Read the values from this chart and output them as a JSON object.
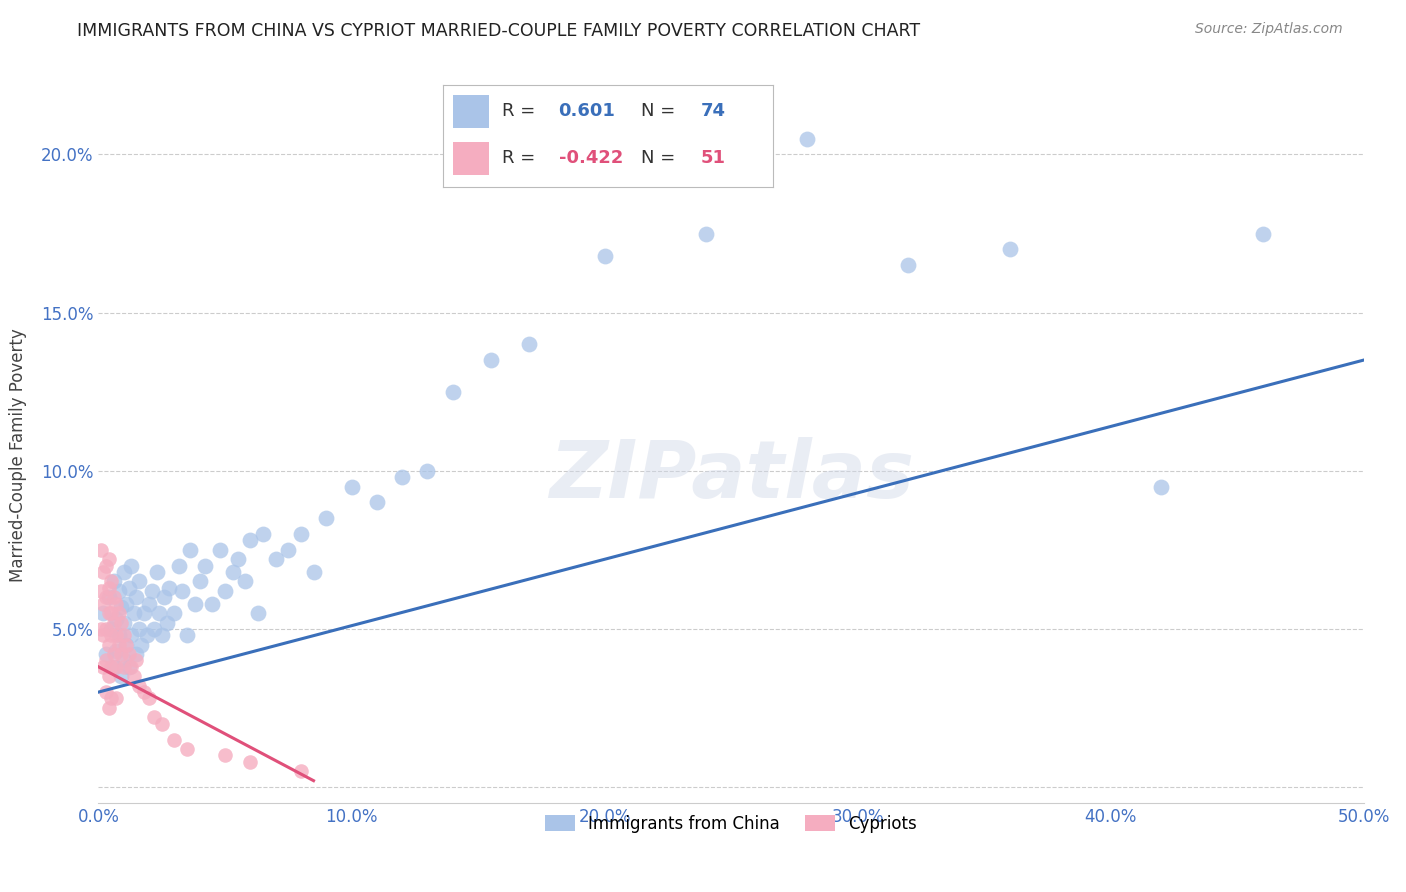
{
  "title": "IMMIGRANTS FROM CHINA VS CYPRIOT MARRIED-COUPLE FAMILY POVERTY CORRELATION CHART",
  "source": "Source: ZipAtlas.com",
  "ylabel": "Married-Couple Family Poverty",
  "xlim": [
    0.0,
    0.5
  ],
  "ylim": [
    -0.005,
    0.215
  ],
  "xticks": [
    0.0,
    0.1,
    0.2,
    0.3,
    0.4,
    0.5
  ],
  "yticks": [
    0.0,
    0.05,
    0.1,
    0.15,
    0.2
  ],
  "xticklabels": [
    "0.0%",
    "10.0%",
    "20.0%",
    "30.0%",
    "40.0%",
    "50.0%"
  ],
  "yticklabels": [
    "",
    "5.0%",
    "10.0%",
    "15.0%",
    "20.0%"
  ],
  "china_R": 0.601,
  "china_N": 74,
  "cypriot_R": -0.422,
  "cypriot_N": 51,
  "china_color": "#aac4e8",
  "cypriot_color": "#f5adc0",
  "china_line_color": "#3a6fba",
  "cypriot_line_color": "#e0507a",
  "background_color": "#ffffff",
  "china_x": [
    0.002,
    0.003,
    0.004,
    0.005,
    0.006,
    0.006,
    0.007,
    0.007,
    0.008,
    0.008,
    0.009,
    0.009,
    0.01,
    0.01,
    0.01,
    0.011,
    0.011,
    0.012,
    0.012,
    0.013,
    0.013,
    0.014,
    0.015,
    0.015,
    0.016,
    0.016,
    0.017,
    0.018,
    0.019,
    0.02,
    0.021,
    0.022,
    0.023,
    0.024,
    0.025,
    0.026,
    0.027,
    0.028,
    0.03,
    0.032,
    0.033,
    0.035,
    0.036,
    0.038,
    0.04,
    0.042,
    0.045,
    0.048,
    0.05,
    0.053,
    0.055,
    0.058,
    0.06,
    0.063,
    0.065,
    0.07,
    0.075,
    0.08,
    0.085,
    0.09,
    0.1,
    0.11,
    0.12,
    0.13,
    0.14,
    0.155,
    0.17,
    0.2,
    0.24,
    0.28,
    0.32,
    0.36,
    0.42,
    0.46
  ],
  "china_y": [
    0.055,
    0.042,
    0.06,
    0.05,
    0.038,
    0.065,
    0.043,
    0.053,
    0.048,
    0.062,
    0.035,
    0.057,
    0.04,
    0.052,
    0.068,
    0.045,
    0.058,
    0.038,
    0.063,
    0.048,
    0.07,
    0.055,
    0.042,
    0.06,
    0.05,
    0.065,
    0.045,
    0.055,
    0.048,
    0.058,
    0.062,
    0.05,
    0.068,
    0.055,
    0.048,
    0.06,
    0.052,
    0.063,
    0.055,
    0.07,
    0.062,
    0.048,
    0.075,
    0.058,
    0.065,
    0.07,
    0.058,
    0.075,
    0.062,
    0.068,
    0.072,
    0.065,
    0.078,
    0.055,
    0.08,
    0.072,
    0.075,
    0.08,
    0.068,
    0.085,
    0.095,
    0.09,
    0.098,
    0.1,
    0.125,
    0.135,
    0.14,
    0.168,
    0.175,
    0.205,
    0.165,
    0.17,
    0.095,
    0.175
  ],
  "cypriot_x": [
    0.001,
    0.001,
    0.001,
    0.002,
    0.002,
    0.002,
    0.002,
    0.003,
    0.003,
    0.003,
    0.003,
    0.003,
    0.004,
    0.004,
    0.004,
    0.004,
    0.004,
    0.004,
    0.005,
    0.005,
    0.005,
    0.005,
    0.005,
    0.006,
    0.006,
    0.006,
    0.007,
    0.007,
    0.007,
    0.007,
    0.008,
    0.008,
    0.009,
    0.009,
    0.01,
    0.01,
    0.011,
    0.012,
    0.013,
    0.014,
    0.015,
    0.016,
    0.018,
    0.02,
    0.022,
    0.025,
    0.03,
    0.035,
    0.05,
    0.06,
    0.08
  ],
  "cypriot_y": [
    0.075,
    0.062,
    0.05,
    0.068,
    0.058,
    0.048,
    0.038,
    0.07,
    0.06,
    0.05,
    0.04,
    0.03,
    0.072,
    0.063,
    0.055,
    0.045,
    0.035,
    0.025,
    0.065,
    0.055,
    0.048,
    0.038,
    0.028,
    0.06,
    0.052,
    0.042,
    0.058,
    0.048,
    0.038,
    0.028,
    0.055,
    0.045,
    0.052,
    0.042,
    0.048,
    0.038,
    0.045,
    0.042,
    0.038,
    0.035,
    0.04,
    0.032,
    0.03,
    0.028,
    0.022,
    0.02,
    0.015,
    0.012,
    0.01,
    0.008,
    0.005
  ],
  "china_line_x0": 0.0,
  "china_line_x1": 0.5,
  "china_line_y0": 0.03,
  "china_line_y1": 0.135,
  "cypriot_line_x0": 0.0,
  "cypriot_line_x1": 0.085,
  "cypriot_line_y0": 0.038,
  "cypriot_line_y1": 0.002
}
